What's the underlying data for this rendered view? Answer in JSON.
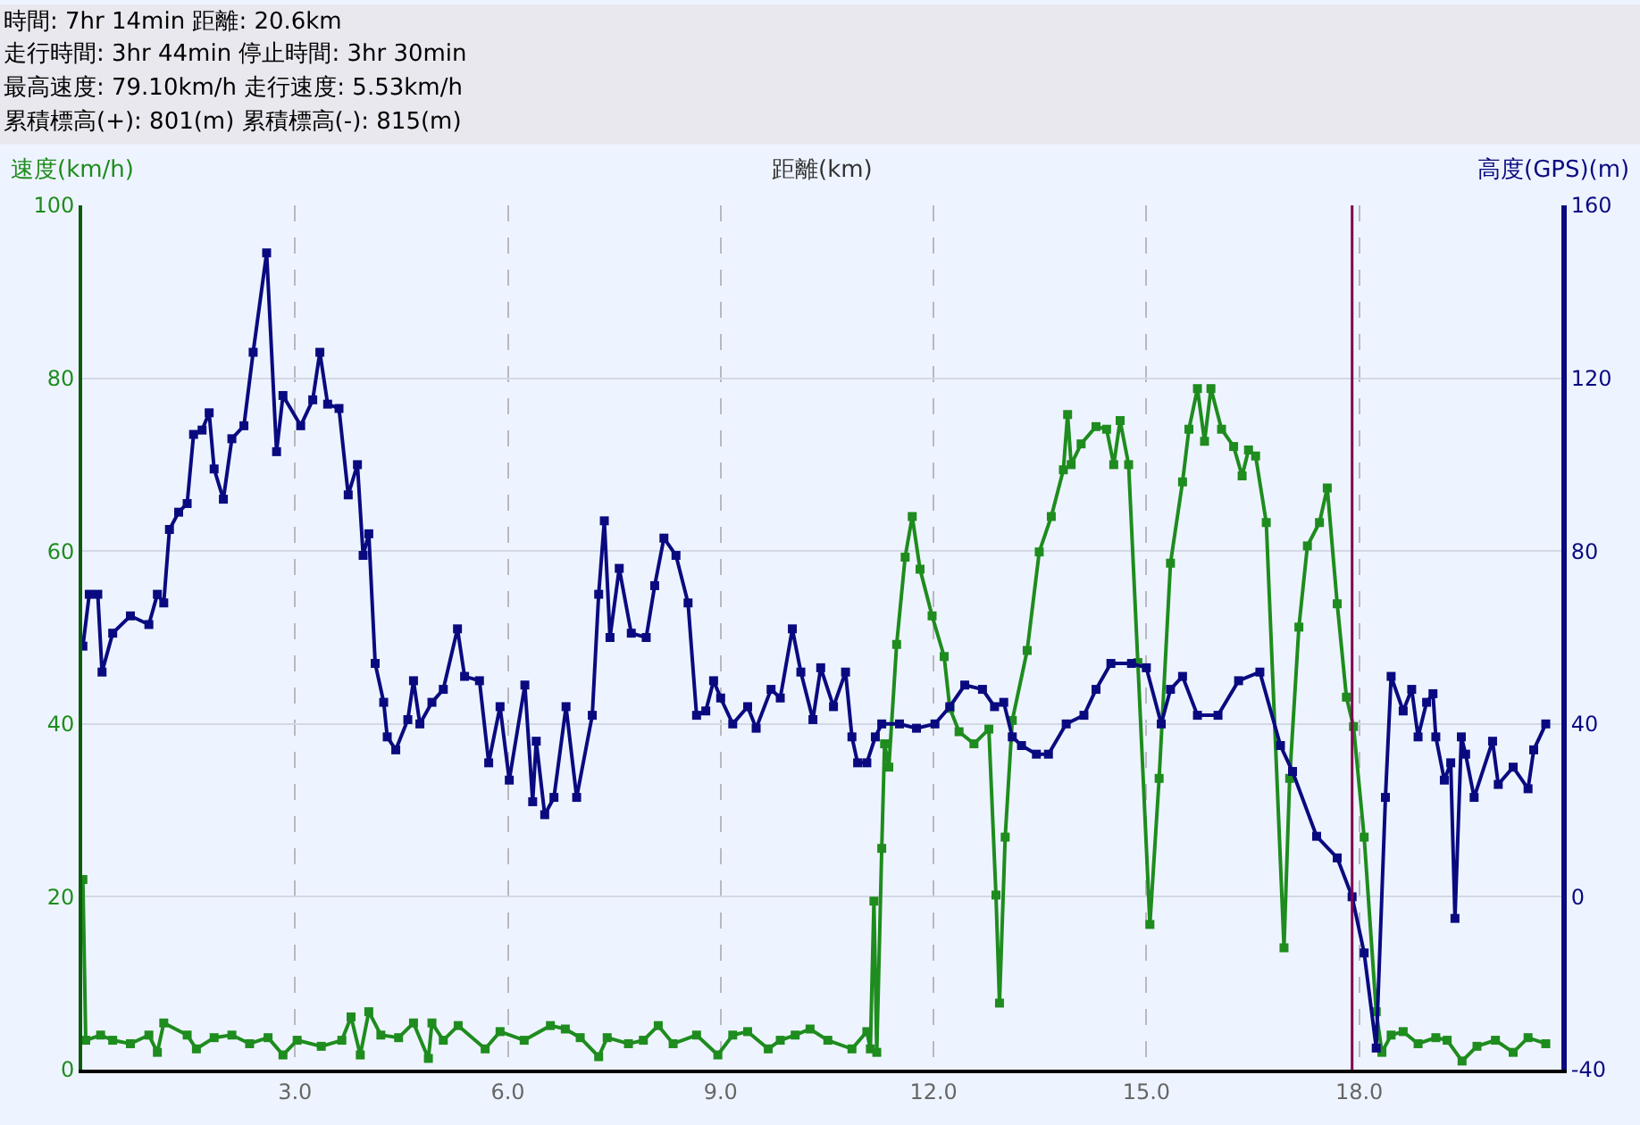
{
  "chart_data": {
    "type": "line",
    "annotations": [
      "時間: 7hr 14min 距離: 20.6km",
      "走行時間: 3hr 44min 停止時間: 3hr 30min",
      "最高速度: 79.10km/h 走行速度: 5.53km/h",
      "累積標高(+): 801(m) 累積標高(-): 815(m)"
    ],
    "xlabel": "距離(km)",
    "ylabel": "速度(km/h)",
    "y2label": "高度(GPS)(m)",
    "xlim": [
      0,
      20.85
    ],
    "xticks": [
      {
        "value": 3,
        "label": "3.0"
      },
      {
        "value": 6,
        "label": "6.0"
      },
      {
        "value": 9,
        "label": "9.0"
      },
      {
        "value": 12,
        "label": "12.0"
      },
      {
        "value": 15,
        "label": "15.0"
      },
      {
        "value": 18,
        "label": "18.0"
      }
    ],
    "ylim": [
      0,
      100
    ],
    "yticks": [
      0,
      20,
      40,
      60,
      80,
      100
    ],
    "y2lim": [
      -40,
      160
    ],
    "y2ticks": [
      -40,
      0,
      40,
      80,
      120,
      160
    ],
    "grid": true,
    "marker": "square",
    "line_style": "solid",
    "ref_lines": [
      {
        "axis": "x",
        "value": 17.9,
        "color": "#800050"
      }
    ],
    "series": [
      {
        "color": "#0a0a80",
        "axis": "y2",
        "x": [
          0.01,
          0.1,
          0.22,
          0.28,
          0.43,
          0.68,
          0.94,
          1.06,
          1.15,
          1.23,
          1.36,
          1.48,
          1.57,
          1.69,
          1.79,
          1.86,
          1.99,
          2.11,
          2.28,
          2.41,
          2.6,
          2.74,
          2.83,
          3.08,
          3.25,
          3.35,
          3.46,
          3.62,
          3.75,
          3.88,
          3.96,
          4.04,
          4.13,
          4.25,
          4.3,
          4.42,
          4.59,
          4.67,
          4.76,
          4.93,
          5.09,
          5.29,
          5.39,
          5.6,
          5.73,
          5.89,
          6.02,
          6.24,
          6.35,
          6.4,
          6.52,
          6.65,
          6.82,
          6.97,
          7.19,
          7.28,
          7.36,
          7.44,
          7.57,
          7.74,
          7.95,
          8.07,
          8.2,
          8.37,
          8.54,
          8.66,
          8.79,
          8.9,
          9.0,
          9.17,
          9.38,
          9.5,
          9.71,
          9.84,
          10.01,
          10.13,
          10.3,
          10.41,
          10.59,
          10.76,
          10.85,
          10.93,
          11.06,
          11.18,
          11.27,
          11.52,
          11.76,
          12.02,
          12.23,
          12.44,
          12.69,
          12.86,
          12.99,
          13.11,
          13.24,
          13.45,
          13.62,
          13.87,
          14.12,
          14.29,
          14.5,
          14.79,
          15.0,
          15.21,
          15.34,
          15.51,
          15.72,
          16.01,
          16.3,
          16.6,
          16.89,
          17.06,
          17.4,
          17.69,
          17.9,
          18.07,
          18.24,
          18.37,
          18.45,
          18.62,
          18.74,
          18.83,
          18.95,
          19.04,
          19.08,
          19.2,
          19.29,
          19.35,
          19.44,
          19.5,
          19.62,
          19.88,
          19.96,
          20.17,
          20.38,
          20.46,
          20.63
        ],
        "values": [
          58,
          70,
          70,
          52,
          61,
          65,
          63,
          70,
          68,
          85,
          89,
          91,
          107,
          108,
          112,
          99,
          92,
          106,
          109,
          126,
          149,
          103,
          116,
          109,
          115,
          126,
          114,
          113,
          93,
          100,
          79,
          84,
          54,
          45,
          37,
          34,
          41,
          50,
          40,
          45,
          48,
          62,
          51,
          50,
          31,
          44,
          27,
          49,
          22,
          36,
          19,
          23,
          44,
          23,
          42,
          70,
          87,
          60,
          76,
          61,
          60,
          72,
          83,
          79,
          68,
          42,
          43,
          50,
          46,
          40,
          44,
          39,
          48,
          46,
          62,
          52,
          41,
          53,
          44,
          52,
          37,
          31,
          31,
          37,
          40,
          40,
          39,
          40,
          44,
          49,
          48,
          44,
          45,
          37,
          35,
          33,
          33,
          40,
          42,
          48,
          54,
          54,
          53,
          40,
          48,
          51,
          42,
          42,
          50,
          52,
          35,
          29,
          14,
          9,
          0,
          -13,
          -35,
          23,
          51,
          43,
          48,
          37,
          45,
          47,
          37,
          27,
          31,
          -5,
          37,
          33,
          23,
          36,
          26,
          30,
          25,
          34,
          40
        ]
      },
      {
        "color": "#1e8c1e",
        "x": [
          0.01,
          0.05,
          0.26,
          0.43,
          0.68,
          0.94,
          1.06,
          1.15,
          1.48,
          1.61,
          1.86,
          2.11,
          2.36,
          2.62,
          2.83,
          3.03,
          3.37,
          3.66,
          3.79,
          3.92,
          4.04,
          4.21,
          4.46,
          4.67,
          4.88,
          4.93,
          5.09,
          5.3,
          5.68,
          5.89,
          6.23,
          6.6,
          6.81,
          7.02,
          7.28,
          7.4,
          7.7,
          7.91,
          8.12,
          8.33,
          8.66,
          8.96,
          9.17,
          9.38,
          9.67,
          9.84,
          10.05,
          10.26,
          10.51,
          10.85,
          11.06,
          11.11,
          11.16,
          11.2,
          11.27,
          11.31,
          11.37,
          11.48,
          11.6,
          11.7,
          11.81,
          11.98,
          12.15,
          12.23,
          12.36,
          12.57,
          12.78,
          12.88,
          12.93,
          13.01,
          13.11,
          13.32,
          13.49,
          13.66,
          13.83,
          13.89,
          13.94,
          14.08,
          14.29,
          14.44,
          14.54,
          14.63,
          14.75,
          14.88,
          15.05,
          15.18,
          15.34,
          15.51,
          15.6,
          15.72,
          15.82,
          15.91,
          16.06,
          16.23,
          16.35,
          16.44,
          16.54,
          16.69,
          16.94,
          17.02,
          17.15,
          17.27,
          17.44,
          17.55,
          17.69,
          17.82,
          17.92,
          18.07,
          18.24,
          18.32,
          18.45,
          18.62,
          18.83,
          19.08,
          19.24,
          19.45,
          19.66,
          19.92,
          20.17,
          20.38,
          20.63
        ],
        "values": [
          22,
          3.4,
          4,
          3.4,
          3,
          4,
          2,
          5.4,
          4,
          2.4,
          3.7,
          4,
          3,
          3.7,
          1.7,
          3.4,
          2.7,
          3.4,
          6.1,
          1.7,
          6.7,
          4,
          3.7,
          5.4,
          1.3,
          5.4,
          3.4,
          5.1,
          2.4,
          4.4,
          3.4,
          5.1,
          4.7,
          3.7,
          1.5,
          3.7,
          3,
          3.4,
          5.1,
          3,
          4,
          1.7,
          4,
          4.4,
          2.4,
          3.4,
          4,
          4.7,
          3.4,
          2.4,
          4.4,
          2.4,
          19.5,
          2,
          25.6,
          37.7,
          35,
          49.2,
          59.3,
          64,
          57.9,
          52.5,
          47.8,
          41.8,
          39.1,
          37.7,
          39.4,
          20.2,
          7.7,
          26.9,
          40.4,
          48.5,
          59.9,
          64,
          69.4,
          75.8,
          70,
          72.4,
          74.4,
          74.1,
          70,
          75.1,
          70,
          47.1,
          16.8,
          33.7,
          58.6,
          68,
          74.1,
          78.8,
          72.7,
          78.8,
          74.1,
          72.1,
          68.7,
          71.7,
          71,
          63.3,
          14.1,
          33.7,
          51.2,
          60.6,
          63.3,
          67.3,
          53.9,
          43.1,
          39.7,
          26.9,
          6.7,
          2,
          4,
          4.4,
          3,
          3.7,
          3.4,
          1,
          2.7,
          3.4,
          2,
          3.7,
          3
        ]
      }
    ]
  }
}
